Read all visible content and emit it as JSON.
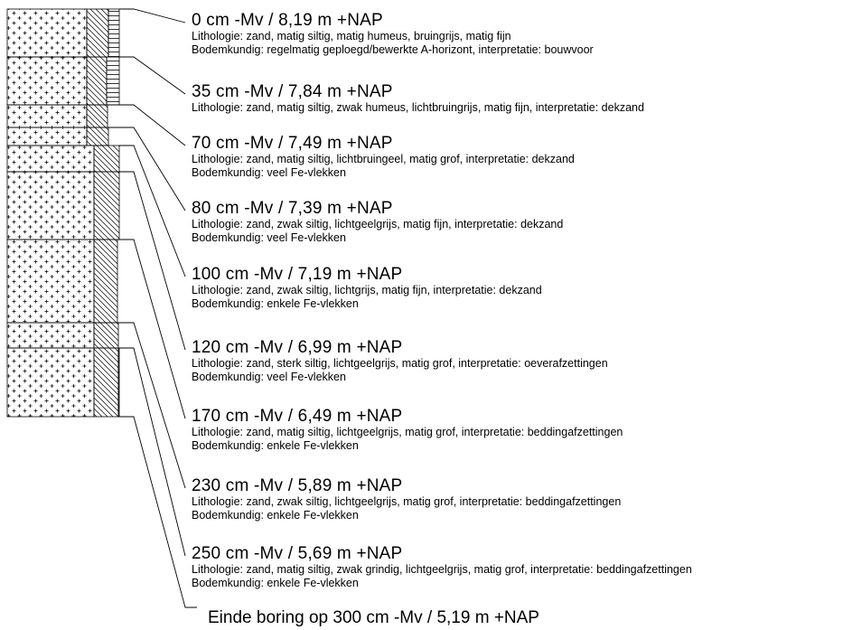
{
  "boring": {
    "layers": [
      {
        "depth": "0 cm -Mv / 8,19 m +NAP",
        "lithologie": "Lithologie: zand, matig siltig, matig humeus, bruingrijs, matig fijn",
        "bodemkundig": "Bodemkundig: regelmatig geploegd/bewerkte A-horizont, interpretatie: bouwvoor"
      },
      {
        "depth": "35 cm -Mv / 7,84 m +NAP",
        "lithologie": "Lithologie: zand, matig siltig, zwak humeus, lichtbruingrijs, matig fijn, interpretatie: dekzand",
        "bodemkundig": ""
      },
      {
        "depth": "70 cm -Mv / 7,49 m +NAP",
        "lithologie": "Lithologie: zand, matig siltig, lichtbruingeel, matig grof, interpretatie: dekzand",
        "bodemkundig": "Bodemkundig: veel Fe-vlekken"
      },
      {
        "depth": "80 cm -Mv / 7,39 m +NAP",
        "lithologie": "Lithologie: zand, zwak siltig, lichtgeelgrijs, matig fijn, interpretatie: dekzand",
        "bodemkundig": "Bodemkundig: veel Fe-vlekken"
      },
      {
        "depth": "100 cm -Mv / 7,19 m +NAP",
        "lithologie": "Lithologie: zand, zwak siltig, lichtgrijs, matig fijn, interpretatie: dekzand",
        "bodemkundig": "Bodemkundig: enkele Fe-vlekken"
      },
      {
        "depth": "120 cm -Mv / 6,99 m +NAP",
        "lithologie": "Lithologie: zand, sterk siltig, lichtgeelgrijs, matig grof, interpretatie: oeverafzettingen",
        "bodemkundig": "Bodemkundig: veel Fe-vlekken"
      },
      {
        "depth": "170 cm -Mv / 6,49 m +NAP",
        "lithologie": "Lithologie: zand, matig siltig, lichtgeelgrijs, matig grof, interpretatie: beddingafzettingen",
        "bodemkundig": "Bodemkundig: enkele Fe-vlekken"
      },
      {
        "depth": "230 cm -Mv / 5,89 m +NAP",
        "lithologie": "Lithologie: zand, zwak siltig, lichtgeelgrijs, matig grof, interpretatie: beddingafzettingen",
        "bodemkundig": "Bodemkundig: enkele Fe-vlekken"
      },
      {
        "depth": "250 cm -Mv / 5,69 m +NAP",
        "lithologie": "Lithologie: zand, matig siltig, zwak grindig, lichtgeelgrijs, matig grof, interpretatie: beddingafzettingen",
        "bodemkundig": "Bodemkundig: enkele Fe-vlekken"
      }
    ],
    "end_label": "Einde boring op 300 cm -Mv / 5,19 m +NAP"
  }
}
